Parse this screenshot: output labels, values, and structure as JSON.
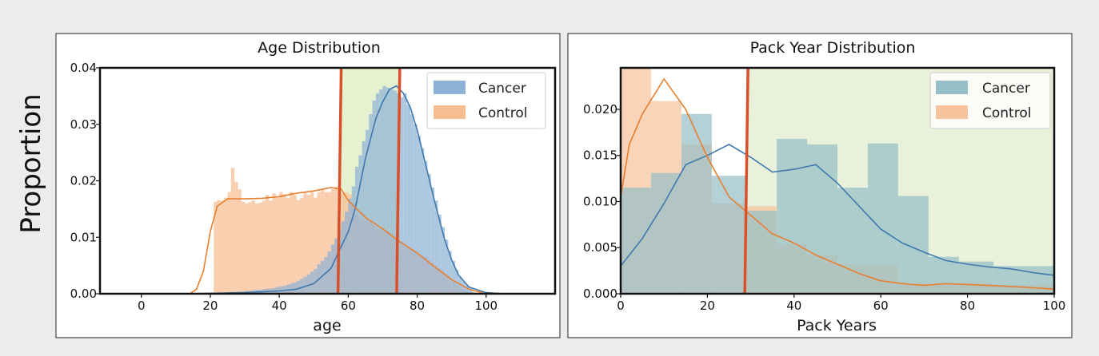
{
  "figure": {
    "ylabel": "Proportion"
  },
  "chart_data": [
    {
      "type": "bar",
      "title": "Age Distribution",
      "xlabel": "age",
      "ylabel": "",
      "xlim": [
        -12,
        120
      ],
      "ylim": [
        0,
        0.04
      ],
      "xticks": [
        "0",
        "20",
        "40",
        "60",
        "80",
        "100"
      ],
      "yticks": [
        "0.00",
        "0.01",
        "0.02",
        "0.03",
        "0.04"
      ],
      "legend_position": "top-right",
      "grid": false,
      "highlight_region": [
        57.5,
        75,
        "#e6f2cf"
      ],
      "vlines": [
        57.5,
        74.5
      ],
      "vline_color": "#d94f2a",
      "series": [
        {
          "name": "Cancer",
          "color": "#8eb2d6",
          "line_color": "#3f79ae",
          "bins": {
            "start": 20,
            "width": 1,
            "values": [
              0.0002,
              0.0002,
              0.0002,
              0.0002,
              0.0002,
              0.0003,
              0.0003,
              0.0003,
              0.0004,
              0.0004,
              0.0005,
              0.0005,
              0.0006,
              0.0007,
              0.0007,
              0.0008,
              0.0009,
              0.0009,
              0.001,
              0.0012,
              0.0013,
              0.0014,
              0.0016,
              0.0018,
              0.002,
              0.0023,
              0.0026,
              0.003,
              0.0034,
              0.0039,
              0.0044,
              0.0052,
              0.0058,
              0.0065,
              0.0075,
              0.0087,
              0.0098,
              0.0112,
              0.0128,
              0.0145,
              0.0168,
              0.019,
              0.0225,
              0.0245,
              0.027,
              0.029,
              0.0318,
              0.0342,
              0.0355,
              0.0362,
              0.0368,
              0.0365,
              0.0362,
              0.036,
              0.0355,
              0.0348,
              0.0355,
              0.0335,
              0.0318,
              0.03,
              0.028,
              0.0258,
              0.0235,
              0.0212,
              0.0188,
              0.0165,
              0.014,
              0.0118,
              0.0096,
              0.0076,
              0.0058,
              0.0042,
              0.003,
              0.0022,
              0.0015,
              0.001
            ]
          },
          "kde": {
            "x": [
              15,
              30,
              40,
              45,
              50,
              55,
              60,
              62,
              65,
              68,
              70,
              72,
              74,
              76,
              78,
              80,
              82,
              85,
              88,
              90,
              92,
              95,
              100,
              105
            ],
            "y": [
              0.0,
              0.0002,
              0.0005,
              0.0008,
              0.0018,
              0.0045,
              0.011,
              0.015,
              0.024,
              0.031,
              0.034,
              0.0362,
              0.0368,
              0.0355,
              0.033,
              0.029,
              0.024,
              0.0165,
              0.0095,
              0.006,
              0.0033,
              0.0012,
              0.0002,
              0.0
            ]
          }
        },
        {
          "name": "Control",
          "color": "#f6bd91",
          "line_color": "#e87f2e",
          "bins": {
            "start": 21,
            "width": 1,
            "values": [
              0.0163,
              0.0166,
              0.0165,
              0.017,
              0.018,
              0.0223,
              0.0198,
              0.0185,
              0.0163,
              0.016,
              0.0162,
              0.0165,
              0.016,
              0.0161,
              0.0165,
              0.0175,
              0.0165,
              0.0178,
              0.017,
              0.018,
              0.0176,
              0.017,
              0.018,
              0.0175,
              0.0166,
              0.017,
              0.018,
              0.0175,
              0.018,
              0.017,
              0.018,
              0.0185,
              0.018,
              0.018,
              0.0185,
              0.019,
              0.018,
              0.0178,
              0.018,
              0.0176,
              0.016,
              0.014,
              0.0135,
              0.013,
              0.0133,
              0.0128,
              0.012,
              0.0115,
              0.0117,
              0.0112,
              0.011,
              0.0105,
              0.01,
              0.0096,
              0.0092,
              0.0088,
              0.0084,
              0.008,
              0.0076,
              0.007,
              0.0068,
              0.0065,
              0.006,
              0.0055,
              0.005,
              0.0045,
              0.004,
              0.0035,
              0.0028,
              0.0022,
              0.0016,
              0.0012,
              0.0008,
              0.0005,
              0.0003,
              0.0002
            ]
          },
          "kde": {
            "x": [
              14,
              16,
              18,
              20,
              22,
              25,
              30,
              35,
              40,
              45,
              50,
              55,
              58,
              60,
              65,
              70,
              75,
              80,
              85,
              90,
              95,
              100
            ],
            "y": [
              0.0,
              0.0008,
              0.004,
              0.011,
              0.0155,
              0.0168,
              0.0168,
              0.0169,
              0.0172,
              0.0178,
              0.0182,
              0.0188,
              0.0185,
              0.0165,
              0.0135,
              0.0115,
              0.0092,
              0.0072,
              0.0048,
              0.0025,
              0.0008,
              0.0
            ]
          }
        }
      ]
    },
    {
      "type": "bar",
      "title": "Pack Year Distribution",
      "xlabel": "Pack Years",
      "ylabel": "",
      "xlim": [
        0,
        100
      ],
      "ylim": [
        0,
        0.0245
      ],
      "xticks": [
        "0",
        "20",
        "40",
        "60",
        "80",
        "100"
      ],
      "yticks": [
        "0.000",
        "0.005",
        "0.010",
        "0.015",
        "0.020"
      ],
      "legend_position": "top-right",
      "grid": false,
      "highlight_region": [
        29,
        100,
        "#e9f1db"
      ],
      "vlines": [
        29
      ],
      "vline_color": "#d94f2a",
      "series": [
        {
          "name": "Cancer",
          "color": "#95bfc7",
          "line_color": "#3f79ae",
          "bins": {
            "edges": [
              0,
              7,
              14,
              21,
              29,
              36,
              43,
              50,
              57,
              64,
              71,
              78,
              86,
              100
            ],
            "values": [
              0.0115,
              0.0131,
              0.0195,
              0.0128,
              0.009,
              0.0168,
              0.0162,
              0.0115,
              0.0163,
              0.0106,
              0.004,
              0.0035,
              0.003
            ]
          },
          "kde": {
            "x": [
              0,
              5,
              10,
              15,
              20,
              25,
              30,
              35,
              40,
              45,
              50,
              55,
              60,
              65,
              70,
              75,
              80,
              85,
              90,
              95,
              100
            ],
            "y": [
              0.003,
              0.006,
              0.0098,
              0.014,
              0.015,
              0.0162,
              0.0148,
              0.0132,
              0.0135,
              0.014,
              0.012,
              0.0095,
              0.007,
              0.0055,
              0.0045,
              0.0036,
              0.0032,
              0.0029,
              0.0027,
              0.0023,
              0.002
            ]
          }
        },
        {
          "name": "Control",
          "color": "#f6c39d",
          "line_color": "#e87f2e",
          "bins": {
            "edges": [
              0,
              7,
              14,
              21,
              29,
              36,
              43,
              50,
              57,
              64,
              71,
              78,
              86,
              100
            ],
            "values": [
              0.0245,
              0.0209,
              0.0162,
              0.0098,
              0.0095,
              0.0054,
              0.0042,
              0.0032,
              0.0032,
              0.0011,
              0.0011,
              0.0011,
              0.001
            ]
          },
          "kde": {
            "x": [
              0,
              2,
              5,
              10,
              15,
              20,
              25,
              30,
              35,
              40,
              45,
              50,
              55,
              60,
              65,
              70,
              75,
              80,
              90,
              100
            ],
            "y": [
              0.0105,
              0.0162,
              0.0195,
              0.0233,
              0.02,
              0.0148,
              0.0105,
              0.0085,
              0.0065,
              0.0055,
              0.0042,
              0.0032,
              0.0022,
              0.0014,
              0.0011,
              0.0009,
              0.0011,
              0.001,
              0.0008,
              0.0005
            ]
          }
        }
      ]
    }
  ]
}
